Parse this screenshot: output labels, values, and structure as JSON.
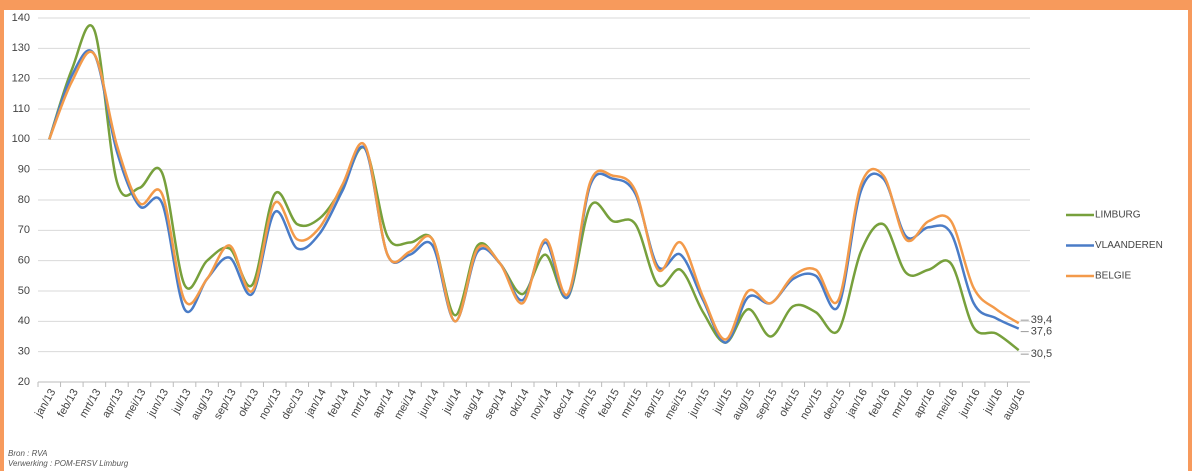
{
  "chart_data": {
    "type": "line",
    "categories": [
      "jan/13",
      "feb/13",
      "mrt/13",
      "apr/13",
      "mei/13",
      "jun/13",
      "jul/13",
      "aug/13",
      "sep/13",
      "okt/13",
      "nov/13",
      "dec/13",
      "jan/14",
      "feb/14",
      "mrt/14",
      "apr/14",
      "mei/14",
      "jun/14",
      "jul/14",
      "aug/14",
      "sep/14",
      "okt/14",
      "nov/14",
      "dec/14",
      "jan/15",
      "feb/15",
      "mrt/15",
      "apr/15",
      "mei/15",
      "jun/15",
      "jul/15",
      "aug/15",
      "sep/15",
      "okt/15",
      "nov/15",
      "dec/15",
      "jan/16",
      "feb/16",
      "mrt/16",
      "apr/16",
      "mei/16",
      "jun/16",
      "jul/16",
      "aug/16"
    ],
    "series": [
      {
        "name": "LIMBURG",
        "color": "#77a03c",
        "values": [
          100,
          123,
          136,
          86,
          84,
          89,
          52,
          60,
          64,
          52,
          82,
          72,
          74,
          84,
          97,
          68,
          66,
          67,
          42,
          65,
          59,
          49,
          62,
          48,
          78,
          73,
          72,
          52,
          57,
          43,
          33,
          44,
          35,
          45,
          43,
          37,
          63,
          72,
          56,
          57,
          59,
          38,
          36,
          30.5
        ],
        "value_labels": [
          null,
          null,
          null,
          null,
          null,
          null,
          null,
          null,
          null,
          null,
          null,
          null,
          null,
          null,
          null,
          null,
          null,
          null,
          null,
          null,
          null,
          null,
          null,
          null,
          null,
          null,
          null,
          null,
          null,
          null,
          null,
          null,
          null,
          null,
          null,
          null,
          null,
          null,
          null,
          null,
          null,
          null,
          null,
          "30,5"
        ]
      },
      {
        "name": "VLAANDEREN",
        "color": "#4a7cc7",
        "values": [
          100,
          121,
          128,
          96,
          78,
          79,
          44,
          54,
          61,
          49,
          76,
          64,
          69,
          83,
          97,
          62,
          62,
          65,
          40,
          63,
          59,
          47,
          66,
          48,
          85,
          87,
          82,
          58,
          62,
          47,
          33,
          48,
          46,
          54,
          55,
          45,
          83,
          87,
          68,
          71,
          69,
          46,
          41,
          37.6
        ],
        "value_labels": [
          null,
          null,
          null,
          null,
          null,
          null,
          null,
          null,
          null,
          null,
          null,
          null,
          null,
          null,
          null,
          null,
          null,
          null,
          null,
          null,
          null,
          null,
          null,
          null,
          null,
          null,
          null,
          null,
          null,
          null,
          null,
          null,
          null,
          null,
          null,
          null,
          null,
          null,
          null,
          null,
          null,
          null,
          null,
          "37,6"
        ]
      },
      {
        "name": "BELGIE",
        "color": "#f39a4a",
        "values": [
          100,
          119,
          128,
          98,
          79,
          82,
          47,
          54,
          65,
          50,
          79,
          67,
          71,
          85,
          98,
          62,
          63,
          67,
          40,
          64,
          59,
          46,
          67,
          49,
          86,
          88,
          83,
          57,
          66,
          48,
          34,
          50,
          46,
          55,
          57,
          47,
          85,
          88,
          67,
          73,
          73,
          51,
          44,
          39.4
        ],
        "value_labels": [
          null,
          null,
          null,
          null,
          null,
          null,
          null,
          null,
          null,
          null,
          null,
          null,
          null,
          null,
          null,
          null,
          null,
          null,
          null,
          null,
          null,
          null,
          null,
          null,
          null,
          null,
          null,
          null,
          null,
          null,
          null,
          null,
          null,
          null,
          null,
          null,
          null,
          null,
          null,
          null,
          null,
          null,
          null,
          "39,4"
        ]
      }
    ],
    "ylim": [
      20,
      140
    ],
    "yticks": [
      20,
      30,
      40,
      50,
      60,
      70,
      80,
      90,
      100,
      110,
      120,
      130,
      140
    ],
    "grid": true,
    "legend": "right"
  },
  "source": "Bron : RVA",
  "processing": "Verwerking : POM-ERSV Limburg"
}
